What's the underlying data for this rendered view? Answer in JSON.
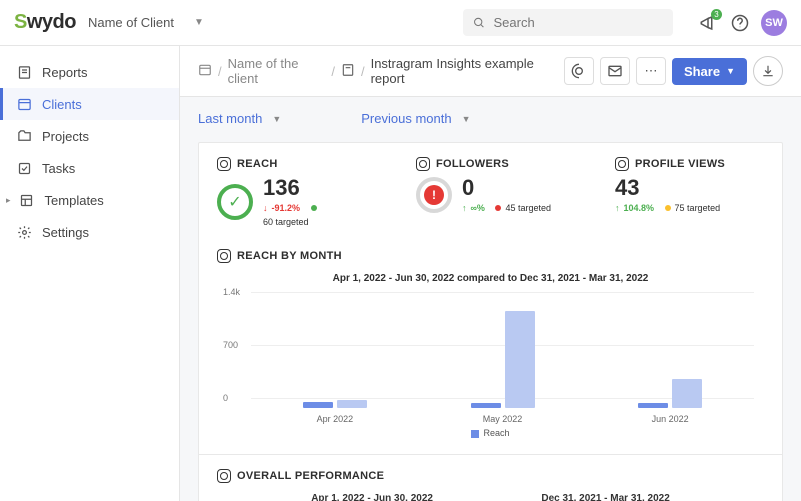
{
  "topbar": {
    "logo_text": "Swydo",
    "client_label": "Name of Client",
    "search_placeholder": "Search",
    "notification_count": "3",
    "avatar_initials": "SW"
  },
  "sidebar": {
    "items": [
      {
        "label": "Reports",
        "active": false
      },
      {
        "label": "Clients",
        "active": true
      },
      {
        "label": "Projects",
        "active": false
      },
      {
        "label": "Tasks",
        "active": false
      },
      {
        "label": "Templates",
        "active": false
      },
      {
        "label": "Settings",
        "active": false
      }
    ]
  },
  "breadcrumb": {
    "client": "Name of the client",
    "report": "Instragram Insights example report"
  },
  "header": {
    "share_label": "Share"
  },
  "dates": {
    "current_label": "Last month",
    "compare_label": "Previous month"
  },
  "kpis": {
    "reach": {
      "title": "REACH",
      "value": "136",
      "pct": "-91.2%",
      "target": "60 targeted",
      "ring_color": "#4caf50",
      "trend": "down"
    },
    "followers": {
      "title": "FOLLOWERS",
      "value": "0",
      "pct": "∞%",
      "target": "45 targeted",
      "trend": "up",
      "target_status": "bad"
    },
    "profile_views": {
      "title": "PROFILE VIEWS",
      "value": "43",
      "pct": "104.8%",
      "target": "75 targeted",
      "trend": "up",
      "target_status": "warn"
    }
  },
  "chart": {
    "title": "REACH BY MONTH",
    "caption": "Apr 1, 2022 - Jun 30, 2022 compared to Dec 31, 2021 - Mar 31, 2022",
    "y_max": 1400,
    "y_ticks": [
      {
        "label": "1.4k",
        "value": 1400
      },
      {
        "label": "700",
        "value": 700
      },
      {
        "label": "0",
        "value": 0
      }
    ],
    "series_label": "Reach",
    "bar_color_current": "#6d8de6",
    "bar_color_compare": "#b9c9f2",
    "months": [
      {
        "label": "Apr 2022",
        "current": 80,
        "compare": 110
      },
      {
        "label": "May 2022",
        "current": 70,
        "compare": 1280
      },
      {
        "label": "Jun 2022",
        "current": 60,
        "compare": 380
      }
    ]
  },
  "overall": {
    "title": "OVERALL PERFORMANCE",
    "range_a": "Apr 1, 2022 - Jun 30, 2022",
    "range_b": "Dec 31, 2021 - Mar 31, 2022"
  }
}
